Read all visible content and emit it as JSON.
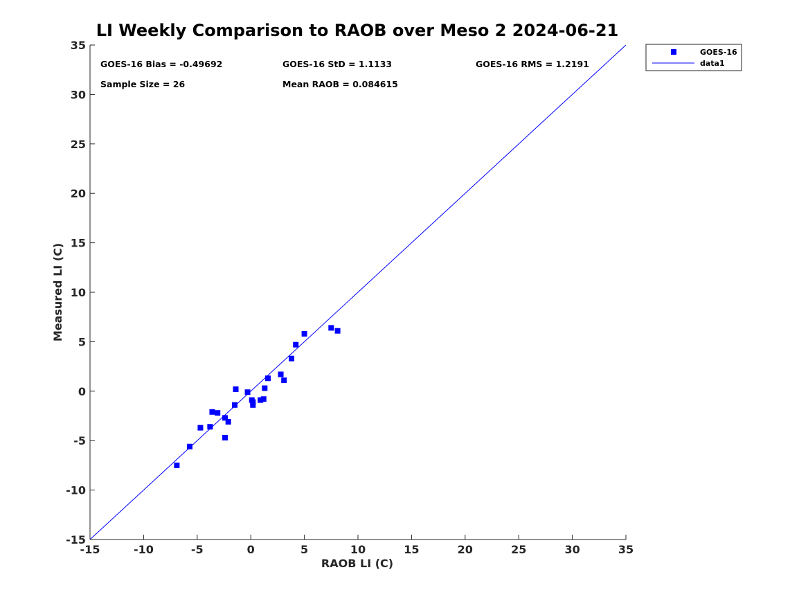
{
  "chart_data": {
    "type": "scatter",
    "title": "LI Weekly Comparison to RAOB over Meso 2 2024-06-21",
    "xlabel": "RAOB LI (C)",
    "ylabel": "Measured LI (C)",
    "xlim": [
      -15,
      35
    ],
    "ylim": [
      -15,
      35
    ],
    "xticks": [
      -15,
      -10,
      -5,
      0,
      5,
      10,
      15,
      20,
      25,
      30,
      35
    ],
    "yticks": [
      -15,
      -10,
      -5,
      0,
      5,
      10,
      15,
      20,
      25,
      30,
      35
    ],
    "grid": false,
    "legend_position": "top-right outside",
    "series": [
      {
        "name": "GOES-16",
        "marker": "square",
        "color": "#0000ff",
        "points": [
          [
            -6.9,
            -7.5
          ],
          [
            -5.7,
            -5.6
          ],
          [
            -4.7,
            -3.7
          ],
          [
            -3.8,
            -3.6
          ],
          [
            -3.6,
            -2.1
          ],
          [
            -3.1,
            -2.2
          ],
          [
            -2.4,
            -2.7
          ],
          [
            -2.1,
            -3.1
          ],
          [
            -2.4,
            -4.7
          ],
          [
            -1.5,
            -1.4
          ],
          [
            -1.4,
            0.2
          ],
          [
            -0.3,
            -0.1
          ],
          [
            0.1,
            -0.9
          ],
          [
            0.2,
            -1.4
          ],
          [
            0.9,
            -0.9
          ],
          [
            1.2,
            -0.8
          ],
          [
            1.3,
            0.3
          ],
          [
            1.6,
            1.3
          ],
          [
            2.8,
            1.7
          ],
          [
            3.1,
            1.1
          ],
          [
            3.8,
            3.3
          ],
          [
            4.2,
            4.7
          ],
          [
            5.0,
            5.8
          ],
          [
            7.5,
            6.4
          ],
          [
            8.1,
            6.1
          ],
          [
            0.2,
            -1.1
          ]
        ]
      },
      {
        "name": "data1",
        "type": "line",
        "color": "#0000ff",
        "points": [
          [
            -15,
            -15
          ],
          [
            35,
            35
          ]
        ]
      }
    ],
    "annotations": {
      "bias": "GOES-16 Bias = -0.49692",
      "std": "GOES-16 StD = 1.1133",
      "rms": "GOES-16 RMS = 1.2191",
      "sample_size": "Sample Size = 26",
      "mean_raob": "Mean RAOB = 0.084615"
    }
  }
}
